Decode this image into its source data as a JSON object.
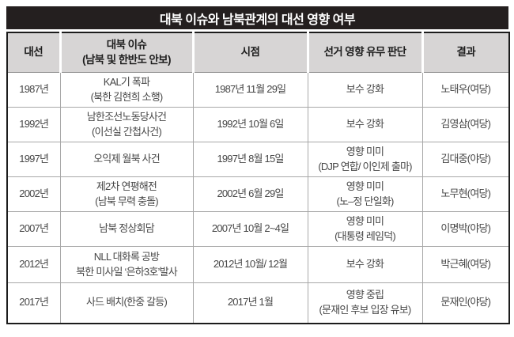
{
  "colors": {
    "title_bg": "#241f1f",
    "title_text": "#ffffff",
    "header_bg": "#d7d5d5",
    "header_text": "#1e1e1e",
    "body_text": "#474747",
    "grid": "#a8a8a8",
    "outer_border": "#1c1c1c"
  },
  "chart_data": {
    "type": "table",
    "title": "대북 이슈와 남북관계의 대선 영향 여부",
    "columns": [
      {
        "key": "election",
        "label_lines": [
          "대선"
        ]
      },
      {
        "key": "issue",
        "label_lines": [
          "대북 이슈",
          "(남북 및 한반도 안보)"
        ]
      },
      {
        "key": "time",
        "label_lines": [
          "시점"
        ]
      },
      {
        "key": "judgment",
        "label_lines": [
          "선거 영향 유무 판단"
        ]
      },
      {
        "key": "result",
        "label_lines": [
          "결과"
        ]
      }
    ],
    "rows": [
      {
        "election": [
          "1987년"
        ],
        "issue": [
          "KAL기 폭파",
          "(북한 김현희 소행)"
        ],
        "time": [
          "1987년 11월 29일"
        ],
        "judgment": [
          "보수 강화"
        ],
        "result": [
          "노태우(여당)"
        ]
      },
      {
        "election": [
          "1992년"
        ],
        "issue": [
          "남한조선노동당사건",
          "(이선실 간첩사건)"
        ],
        "time": [
          "1992년 10월 6일"
        ],
        "judgment": [
          "보수 강화"
        ],
        "result": [
          "김영삼(여당)"
        ]
      },
      {
        "election": [
          "1997년"
        ],
        "issue": [
          "오익제 월북 사건"
        ],
        "time": [
          "1997년 8월 15일"
        ],
        "judgment": [
          "영향 미미",
          "(DJP 연합/ 이인제 출마)"
        ],
        "result": [
          "김대중(야당)"
        ]
      },
      {
        "election": [
          "2002년"
        ],
        "issue": [
          "제2차 연평해전",
          "(남북 무력 충돌)"
        ],
        "time": [
          "2002년 6월 29일"
        ],
        "judgment": [
          "영향 미미",
          "(노–정 단일화)"
        ],
        "result": [
          "노무현(여당)"
        ]
      },
      {
        "election": [
          "2007년"
        ],
        "issue": [
          "남북 정상회담"
        ],
        "time": [
          "2007년 10월 2~4일"
        ],
        "judgment": [
          "영향 미미",
          "(대통령 레임덕)"
        ],
        "result": [
          "이명박(야당)"
        ]
      },
      {
        "election": [
          "2012년"
        ],
        "issue": [
          "NLL 대화록 공방",
          "북한 미사일 ‘은하3호’발사"
        ],
        "time": [
          "2012년 10월/ 12월"
        ],
        "judgment": [
          "보수 강화"
        ],
        "result": [
          "박근혜(여당)"
        ]
      },
      {
        "election": [
          "2017년"
        ],
        "issue": [
          "사드 배치(한중 갈등)"
        ],
        "time": [
          "2017년 1월"
        ],
        "judgment": [
          "영향 중립",
          "(문재인 후보 입장 유보)"
        ],
        "result": [
          "문재인(야당)"
        ]
      }
    ]
  }
}
